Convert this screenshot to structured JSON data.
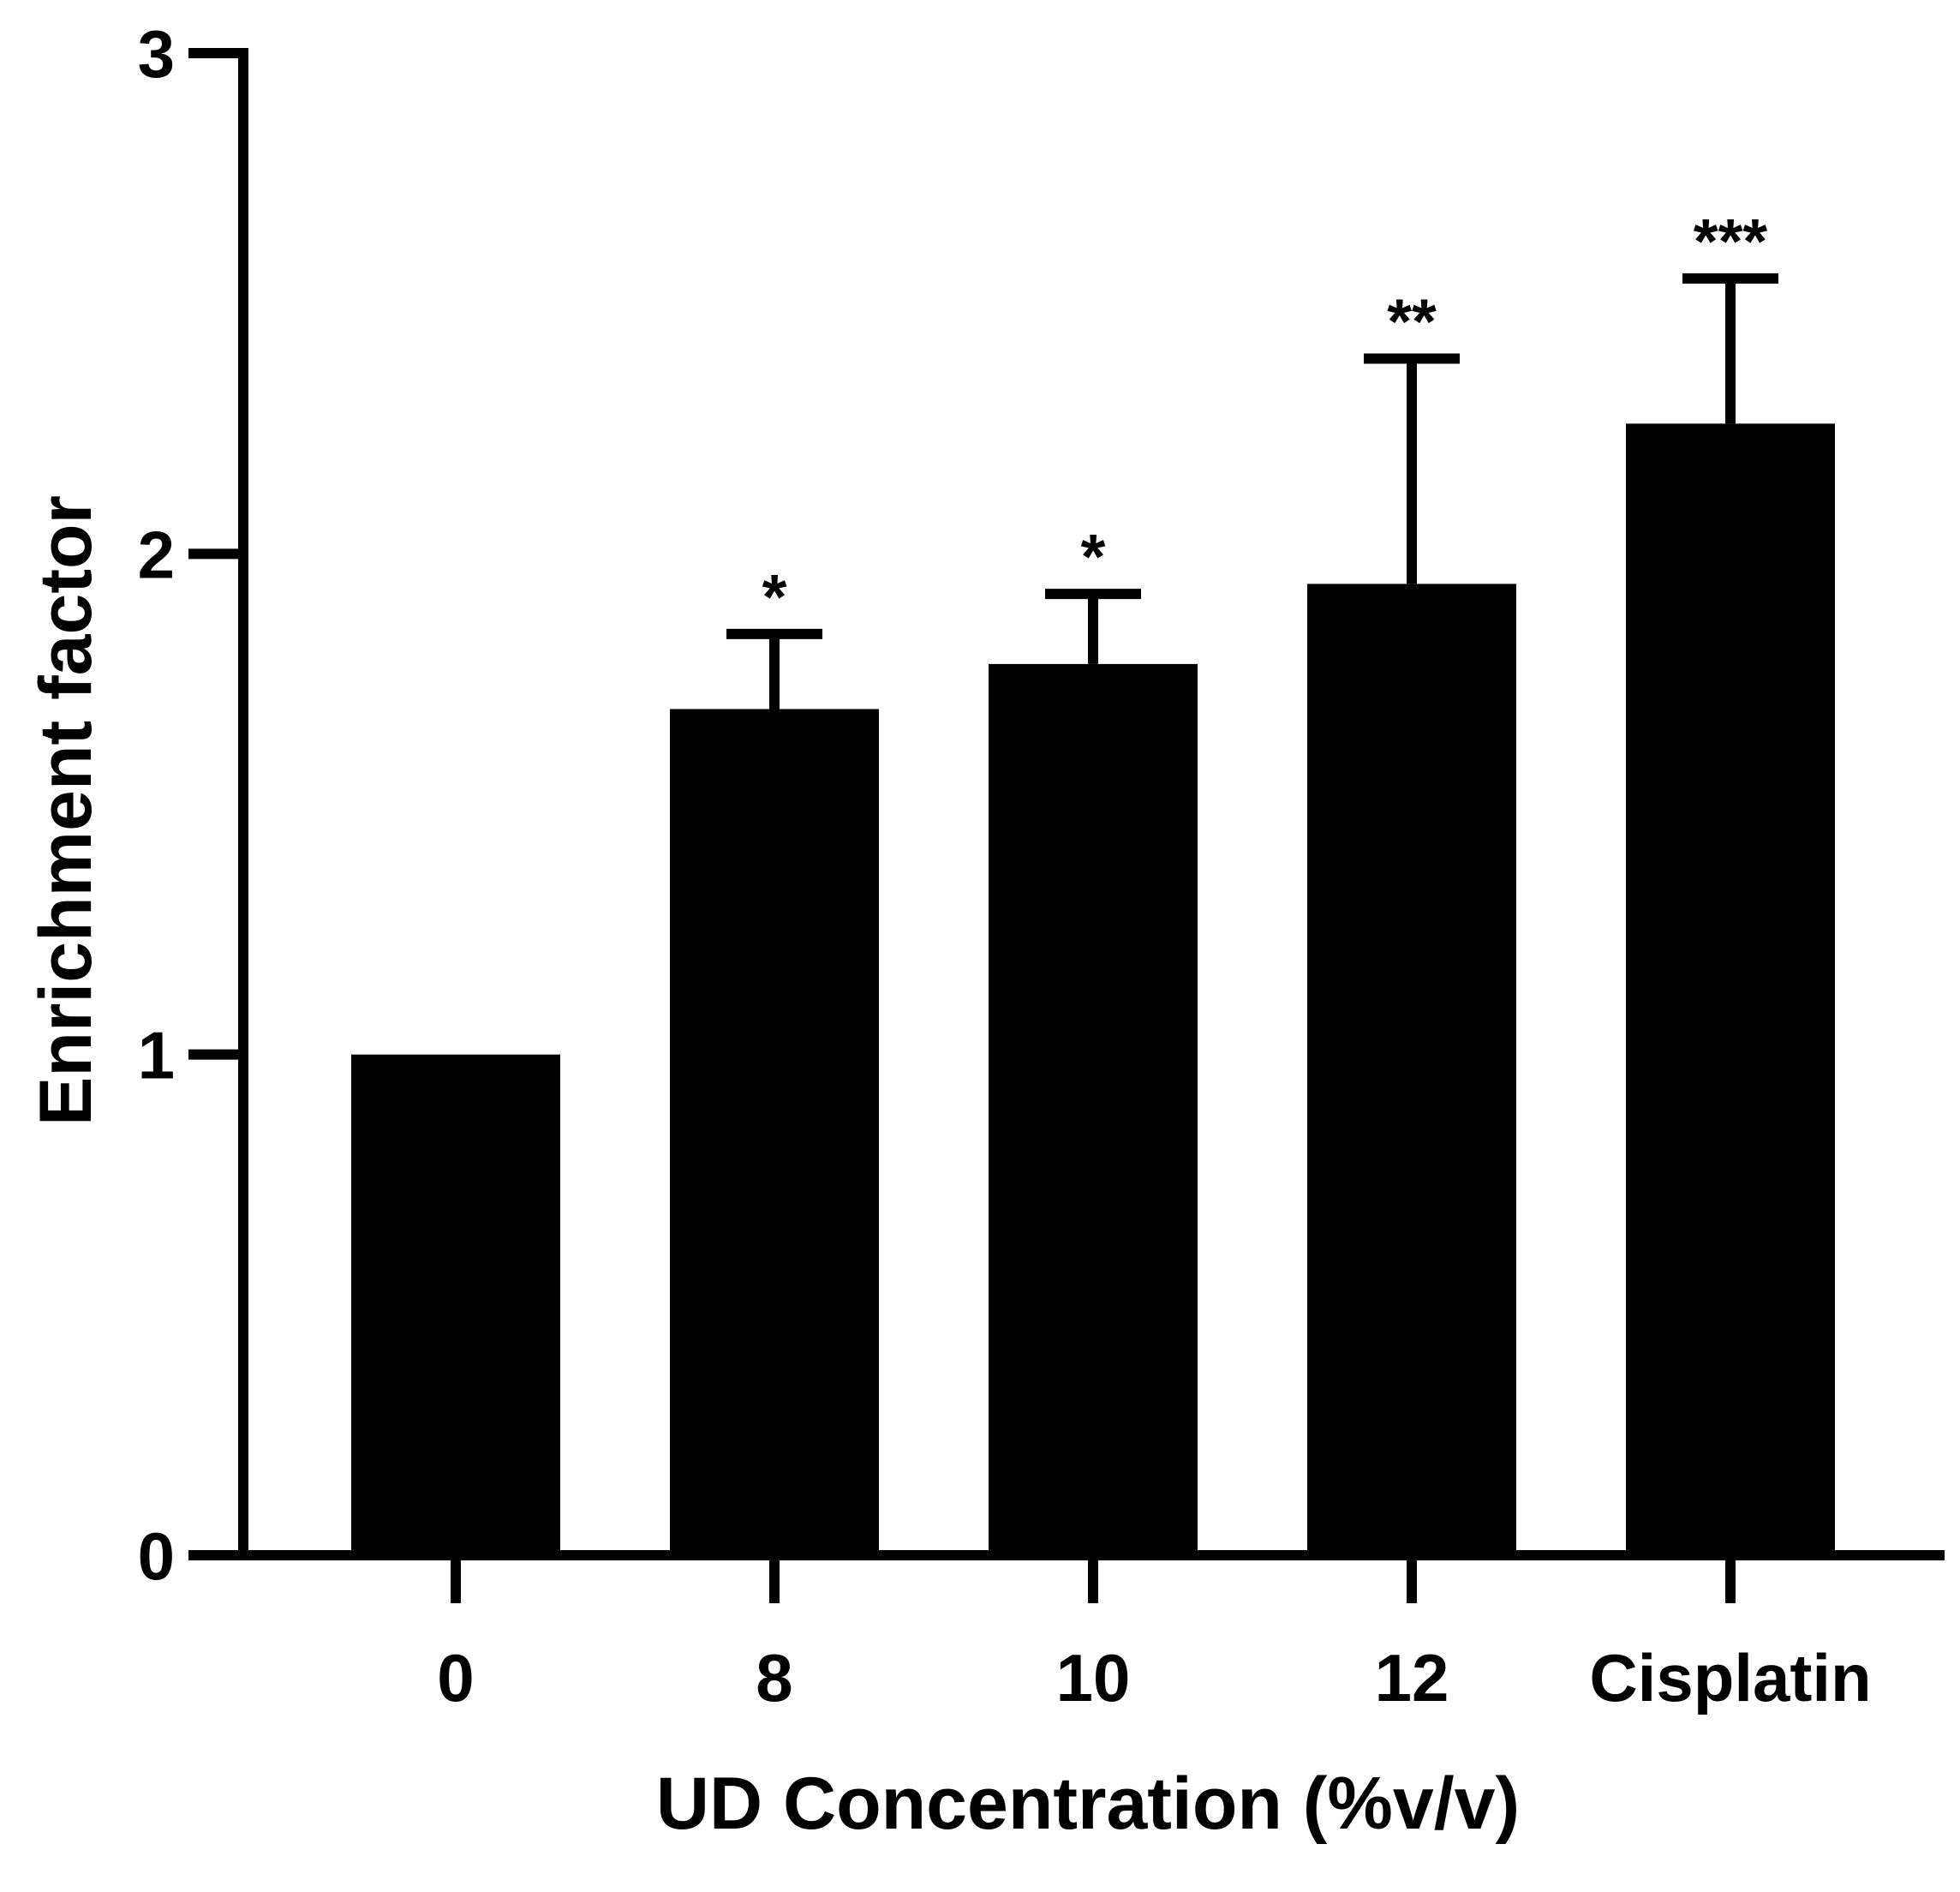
{
  "chart_data": {
    "type": "bar",
    "title": "",
    "xlabel": "UD Concentration (%v/v)",
    "ylabel": "Enrichment factor",
    "ylim": [
      0,
      3
    ],
    "yticks": [
      "0",
      "1",
      "2",
      "3"
    ],
    "categories": [
      "0",
      "8",
      "10",
      "12",
      "Cisplatin"
    ],
    "values": [
      1.0,
      1.69,
      1.78,
      1.94,
      2.26
    ],
    "error_upper": [
      null,
      1.84,
      1.92,
      2.39,
      2.55
    ],
    "significance": [
      "",
      "*",
      "*",
      "**",
      "***"
    ],
    "bar_color": "#000000",
    "grid": false,
    "legend": "none"
  }
}
